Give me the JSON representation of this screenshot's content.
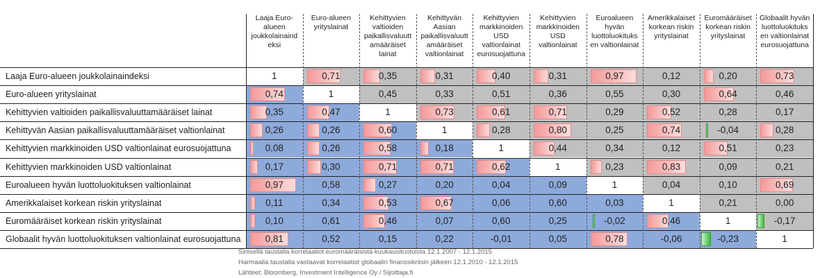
{
  "chart_data": {
    "type": "heatmap",
    "columns": [
      "Laaja Euro-alueen joukkolainaindeksi",
      "Euro-alueen yrityslainat",
      "Kehittyvien valtioiden paikallisvaluuttamääräiset lainat",
      "Kehittyvän Aasian paikallisvaluuttamääräiset valtionlainat",
      "Kehittyvien markkinoiden USD valtionlainat eurosuojattuna",
      "Kehittyvien markkinoiden USD valtionlainat",
      "Euroalueen hyvän luottoluokituksen valtionlainat",
      "Amerikkalaiset korkean riskin yrityslainat",
      "Euromääräiset korkean riskin yrityslainat",
      "Globaalit hyvän luottoluokituksen valtionlainat eurosuojattuna"
    ],
    "column_header_lines": [
      [
        "Laaja Euro-",
        "alueen",
        "joukkolainaind",
        "eksi"
      ],
      [
        "Euro-alueen",
        "yrityslainat"
      ],
      [
        "Kehittyvien",
        "valtioiden",
        "paikallisvaluutt",
        "amääräiset",
        "lainat"
      ],
      [
        "Kehittyvän",
        "Aasian",
        "paikallisvaluutt",
        "amääräiset",
        "valtionlainat"
      ],
      [
        "Kehittyvien",
        "markkinoiden",
        "USD",
        "valtionlainat",
        "eurosuojattuna"
      ],
      [
        "Kehittyvien",
        "markkinoiden",
        "USD",
        "valtionlainat"
      ],
      [
        "Euroalueen",
        "hyvän",
        "luottoluokituks",
        "en valtionlainat"
      ],
      [
        "Amerikkalaiset",
        "korkean riskin",
        "yrityslainat"
      ],
      [
        "Euromääräiset",
        "korkean riskin",
        "yrityslainat"
      ],
      [
        "Globaalit hyvän",
        "luottoluokituks",
        "en valtionlainat",
        "eurosuojattuna"
      ]
    ],
    "rows": [
      "Laaja Euro-alueen joukkolainaindeksi",
      "Euro-alueen yrityslainat",
      "Kehittyvien valtioiden paikallisvaluuttamääräiset lainat",
      "Kehittyvän Aasian paikallisvaluuttamääräiset valtionlainat",
      "Kehittyvien markkinoiden USD valtionlainat eurosuojattuna",
      "Kehittyvien markkinoiden USD valtionlainat",
      "Euroalueen hyvän luottoluokituksen valtionlainat",
      "Amerikkalaiset korkean riskin yrityslainat",
      "Euromääräiset korkean riskin yrityslainat",
      "Globaalit hyvän luottoluokituksen valtionlainat eurosuojattuna"
    ],
    "values": [
      [
        "1",
        "0,71",
        "0,35",
        "0,31",
        "0,40",
        "0,31",
        "0,97",
        "0,12",
        "0,20",
        "0,73"
      ],
      [
        "0,74",
        "1",
        "0,45",
        "0,33",
        "0,51",
        "0,36",
        "0,55",
        "0,30",
        "0,64",
        "0,46"
      ],
      [
        "0,35",
        "0,47",
        "1",
        "0,73",
        "0,61",
        "0,71",
        "0,29",
        "0,52",
        "0,28",
        "0,17"
      ],
      [
        "0,26",
        "0,26",
        "0,60",
        "1",
        "0,28",
        "0,80",
        "0,25",
        "0,74",
        "-0,04",
        "0,28"
      ],
      [
        "0,08",
        "0,26",
        "0,58",
        "0,18",
        "1",
        "0,44",
        "0,34",
        "0,12",
        "0,51",
        "0,23"
      ],
      [
        "0,17",
        "0,30",
        "0,71",
        "0,71",
        "0,62",
        "1",
        "0,23",
        "0,83",
        "0,09",
        "0,21"
      ],
      [
        "0,97",
        "0,58",
        "0,27",
        "0,20",
        "0,04",
        "0,09",
        "1",
        "0,04",
        "0,10",
        "0,69"
      ],
      [
        "0,11",
        "0,34",
        "0,53",
        "0,67",
        "0,06",
        "0,60",
        "0,03",
        "1",
        "0,21",
        "0,00"
      ],
      [
        "0,10",
        "0,61",
        "0,46",
        "0,07",
        "0,60",
        "0,25",
        "-0,02",
        "0,46",
        "1",
        "-0,17"
      ],
      [
        "0,81",
        "0,52",
        "0,15",
        "0,22",
        "-0,01",
        "0,05",
        "0,78",
        "-0,06",
        "-0,23",
        "1"
      ]
    ],
    "highlighted_bars": [
      [
        false,
        true,
        true,
        true,
        true,
        true,
        true,
        false,
        true,
        true
      ],
      [
        true,
        false,
        false,
        false,
        false,
        false,
        false,
        false,
        true,
        false
      ],
      [
        true,
        true,
        false,
        true,
        true,
        true,
        false,
        true,
        false,
        false
      ],
      [
        true,
        true,
        true,
        false,
        true,
        true,
        false,
        true,
        true,
        true
      ],
      [
        true,
        true,
        true,
        true,
        false,
        true,
        false,
        false,
        true,
        false
      ],
      [
        true,
        true,
        true,
        true,
        true,
        false,
        true,
        true,
        false,
        false
      ],
      [
        true,
        false,
        true,
        false,
        false,
        false,
        false,
        false,
        false,
        true
      ],
      [
        true,
        false,
        true,
        true,
        false,
        false,
        false,
        false,
        false,
        false
      ],
      [
        true,
        false,
        true,
        false,
        false,
        false,
        true,
        true,
        true,
        true
      ],
      [
        true,
        false,
        false,
        false,
        false,
        false,
        true,
        false,
        true,
        false
      ]
    ],
    "colors": {
      "lower_triangle": "#8eaadb",
      "upper_triangle": "#c0c0c0",
      "diagonal": "#ffffff",
      "positive_bar": "#f49a9a",
      "negative_bar": "#3dbb3d"
    }
  },
  "notes": [
    "Sinisellä taustalla korrelaatiot euromääräisistä kuukausituotoista 12.1.2007 - 12.1.2015",
    "Harmaalla taustalla vastaavat korrelaatiot globaalin finanssikriisin jälkeen 12.1.2010 - 12.1.2015",
    "Lähteet: Bloomberg, Investment Intelligence Oy / Sijoittaja.fi"
  ]
}
